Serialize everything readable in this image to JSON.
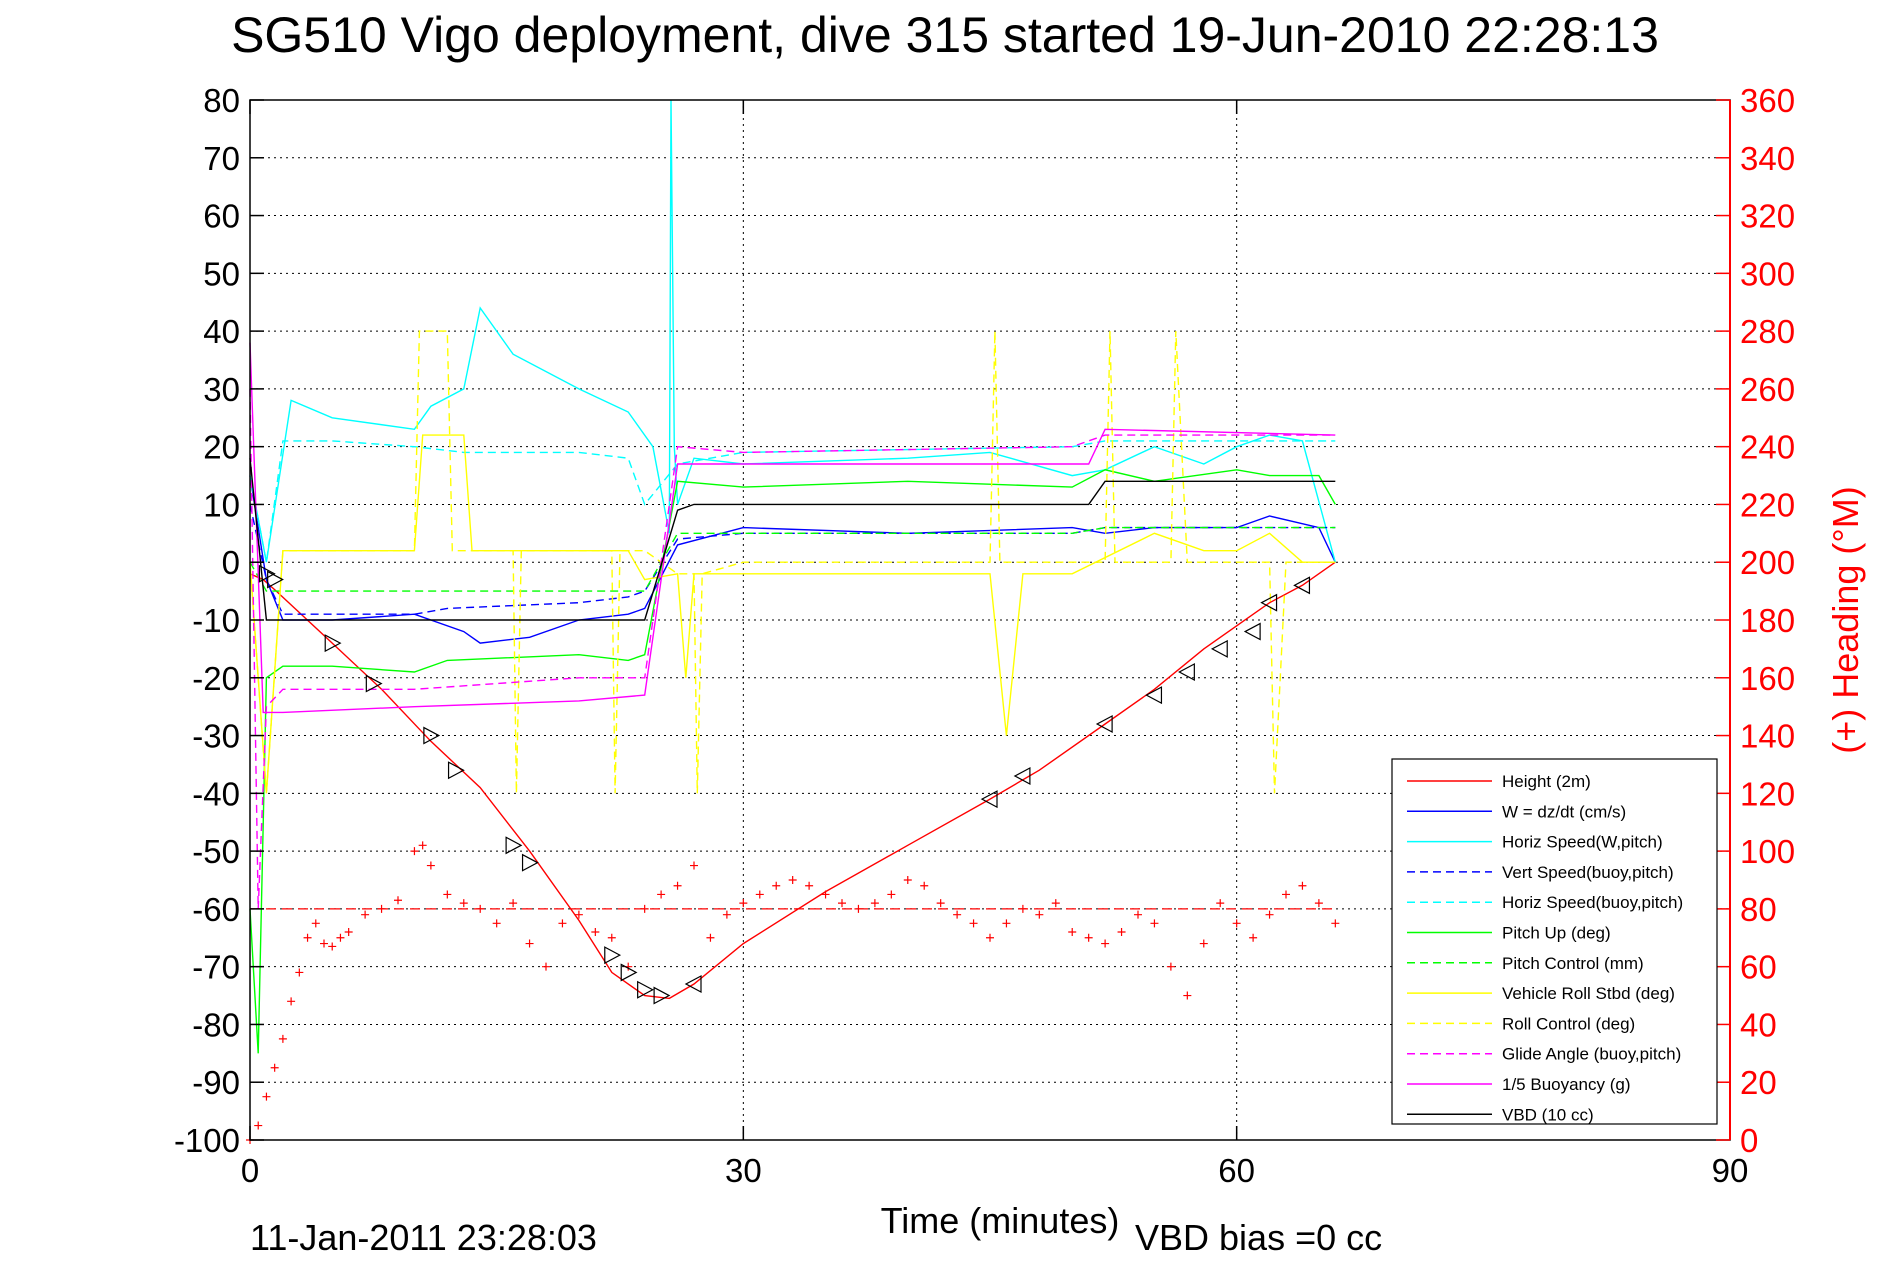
{
  "chart_data": {
    "type": "line",
    "title": "SG510 Vigo deployment, dive 315 started 19-Jun-2010 22:28:13",
    "xlabel": "Time (minutes)",
    "ylabel_right": "(+) Heading (°M)",
    "x_ticks": [
      "0",
      "30",
      "60",
      "90"
    ],
    "xlim": [
      0,
      90
    ],
    "y_ticks": [
      "80",
      "70",
      "60",
      "50",
      "40",
      "30",
      "20",
      "10",
      "0",
      "-10",
      "-20",
      "-30",
      "-40",
      "-50",
      "-60",
      "-70",
      "-80",
      "-90",
      "-100"
    ],
    "ylim": [
      -100,
      80
    ],
    "y2_ticks": [
      "360",
      "340",
      "320",
      "300",
      "280",
      "260",
      "240",
      "220",
      "200",
      "180",
      "160",
      "140",
      "120",
      "100",
      "80",
      "60",
      "40",
      "20",
      "0"
    ],
    "y2lim": [
      0,
      360
    ],
    "grid": true,
    "legend_position": "bottom-right",
    "footer_date": "11-Jan-2011 23:28:03",
    "footer_bias": "VBD bias =0 cc",
    "colors": {
      "height": "#ff0000",
      "w": "#0000ff",
      "horiz_speed": "#00ffff",
      "pitch": "#00ff00",
      "roll": "#ffff00",
      "glide": "#ff00ff",
      "vbd": "#000000",
      "heading": "#ff0000"
    },
    "series": [
      {
        "name": "Height (2m)",
        "color": "#ff0000",
        "style": "solid",
        "x": [
          0,
          0.8,
          1.6,
          5,
          8,
          11,
          14,
          17,
          20,
          22,
          24,
          25.5,
          27,
          30,
          35,
          40,
          45,
          48,
          52,
          55,
          58,
          62,
          64,
          66
        ],
        "y": [
          -2,
          -3,
          -5,
          -14,
          -22,
          -31,
          -39,
          -50,
          -62,
          -71,
          -75,
          -75.5,
          -73,
          -66,
          -57,
          -49,
          -41,
          -36,
          -28,
          -22,
          -15,
          -7,
          -4,
          0
        ]
      },
      {
        "name": "W = dz/dt (cm/s)",
        "color": "#0000ff",
        "style": "solid",
        "x": [
          0,
          1,
          2,
          5,
          10,
          13,
          14,
          17,
          20,
          23,
          24,
          26,
          30,
          40,
          50,
          52,
          55,
          60,
          62,
          65,
          66
        ],
        "y": [
          15,
          -3,
          -10,
          -10,
          -9,
          -12,
          -14,
          -13,
          -10,
          -9,
          -8,
          3,
          6,
          5,
          6,
          5,
          6,
          6,
          8,
          6,
          0
        ]
      },
      {
        "name": "Horiz Speed(W,pitch)",
        "color": "#00ffff",
        "style": "solid",
        "x": [
          0,
          1,
          2.5,
          5,
          10,
          11,
          13,
          14,
          16,
          20,
          23,
          24.5,
          25.5,
          25.6,
          25.8,
          26,
          27,
          30,
          40,
          45,
          50,
          52,
          55,
          58,
          60,
          62,
          64,
          66
        ],
        "y": [
          15,
          0,
          28,
          25,
          23,
          27,
          30,
          44,
          36,
          30,
          26,
          20,
          5,
          80,
          20,
          10,
          18,
          17,
          18,
          19,
          15,
          16,
          20,
          17,
          20,
          22,
          21,
          0
        ]
      },
      {
        "name": "Vert Speed(buoy,pitch)",
        "color": "#0000ff",
        "style": "dashed",
        "x": [
          0,
          1,
          2,
          10,
          12,
          20,
          23,
          24,
          26,
          30,
          50,
          52,
          66
        ],
        "y": [
          10,
          -3,
          -9,
          -9,
          -8,
          -7,
          -6,
          -5,
          4,
          5,
          5,
          6,
          6
        ]
      },
      {
        "name": "Horiz Speed(buoy,pitch)",
        "color": "#00ffff",
        "style": "dashed",
        "x": [
          0,
          1,
          2,
          5,
          10,
          13,
          20,
          23,
          24,
          26,
          30,
          50,
          52,
          66
        ],
        "y": [
          15,
          0,
          21,
          21,
          20,
          19,
          19,
          18,
          10,
          17,
          19,
          20,
          21,
          21
        ]
      },
      {
        "name": "Pitch Up (deg)",
        "color": "#00ff00",
        "style": "solid",
        "x": [
          0,
          0.5,
          1,
          2,
          5,
          10,
          12,
          20,
          23,
          24,
          26,
          30,
          40,
          50,
          52,
          55,
          60,
          62,
          65,
          66
        ],
        "y": [
          -60,
          -85,
          -20,
          -18,
          -18,
          -19,
          -17,
          -16,
          -17,
          -16,
          14,
          13,
          14,
          13,
          16,
          14,
          16,
          15,
          15,
          10
        ]
      },
      {
        "name": "Pitch Control (mm)",
        "color": "#00ff00",
        "style": "dashed",
        "x": [
          0,
          1,
          2,
          20,
          24,
          26,
          50,
          52,
          66
        ],
        "y": [
          0,
          -5,
          -5,
          -5,
          -5,
          5,
          5,
          6,
          6
        ]
      },
      {
        "name": "Vehicle Roll Stbd (deg)",
        "color": "#ffff00",
        "style": "solid",
        "x": [
          0,
          1,
          2,
          10,
          10.5,
          11,
          13,
          13.5,
          14,
          20,
          23,
          24,
          26,
          26.5,
          27,
          30,
          45,
          46,
          47,
          50,
          55,
          58,
          60,
          62,
          64,
          66
        ],
        "y": [
          0,
          -40,
          2,
          2,
          22,
          22,
          22,
          2,
          2,
          2,
          2,
          -3,
          -2,
          -20,
          -2,
          -2,
          -2,
          -30,
          -2,
          -2,
          5,
          2,
          2,
          5,
          0,
          0
        ]
      },
      {
        "name": "Roll Control (deg)",
        "color": "#ffff00",
        "style": "dashed",
        "x": [
          0,
          1,
          2,
          10,
          10.3,
          12,
          12.3,
          16,
          16.2,
          16.5,
          20,
          22,
          22.2,
          22.5,
          24,
          26,
          27,
          27.2,
          27.5,
          30,
          45,
          45.3,
          45.6,
          52,
          52.3,
          52.6,
          56,
          56.3,
          57,
          60,
          62,
          62.3,
          63,
          64,
          66
        ],
        "y": [
          0,
          -40,
          2,
          2,
          40,
          40,
          2,
          2,
          -40,
          2,
          2,
          2,
          -40,
          2,
          2,
          -2,
          -2,
          -40,
          -2,
          0,
          0,
          40,
          0,
          0,
          40,
          0,
          0,
          40,
          0,
          0,
          0,
          -40,
          0,
          0,
          0
        ]
      },
      {
        "name": "Glide Angle (buoy,pitch)",
        "color": "#ff00ff",
        "style": "dashed",
        "x": [
          0,
          0.5,
          1,
          2,
          5,
          10,
          20,
          24,
          26,
          30,
          50,
          52,
          66
        ],
        "y": [
          30,
          -60,
          -25,
          -22,
          -22,
          -22,
          -20,
          -20,
          20,
          19,
          20,
          22,
          22
        ]
      },
      {
        "name": "1/5 Buoyancy (g)",
        "color": "#ff00ff",
        "style": "solid",
        "x": [
          0,
          0.8,
          2,
          10,
          20,
          24,
          26,
          50,
          51,
          52,
          66
        ],
        "y": [
          38,
          -26,
          -26,
          -25,
          -24,
          -23,
          17,
          17,
          17,
          23,
          22
        ]
      },
      {
        "name": "VBD (10 cc)",
        "color": "#000000",
        "style": "solid",
        "x": [
          0,
          1,
          2,
          24,
          26,
          27,
          51,
          52,
          66
        ],
        "y": [
          18,
          -10,
          -10,
          -10,
          9,
          10,
          10,
          14,
          14
        ]
      }
    ],
    "heading_markers": {
      "name": "Heading (+)",
      "color": "#ff0000",
      "mean": 80,
      "x": [
        0,
        0.5,
        1,
        1.5,
        2,
        2.5,
        3,
        3.5,
        4,
        4.5,
        5,
        5.5,
        6,
        7,
        8,
        9,
        10,
        10.5,
        11,
        12,
        13,
        14,
        15,
        16,
        17,
        18,
        19,
        20,
        21,
        22,
        23,
        24,
        25,
        26,
        27,
        28,
        29,
        30,
        31,
        32,
        33,
        34,
        35,
        36,
        37,
        38,
        39,
        40,
        41,
        42,
        43,
        44,
        45,
        46,
        47,
        48,
        49,
        50,
        51,
        52,
        53,
        54,
        55,
        56,
        57,
        58,
        59,
        60,
        61,
        62,
        63,
        64,
        65,
        66
      ],
      "y": [
        0,
        5,
        15,
        25,
        35,
        48,
        58,
        70,
        75,
        68,
        67,
        70,
        72,
        78,
        80,
        83,
        100,
        102,
        95,
        85,
        82,
        80,
        75,
        82,
        68,
        60,
        75,
        78,
        72,
        70,
        60,
        80,
        85,
        88,
        95,
        70,
        78,
        82,
        85,
        88,
        90,
        88,
        85,
        82,
        80,
        82,
        85,
        90,
        88,
        82,
        78,
        75,
        70,
        75,
        80,
        78,
        82,
        72,
        70,
        68,
        72,
        78,
        75,
        60,
        50,
        68,
        82,
        75,
        70,
        78,
        85,
        88,
        82,
        75
      ]
    },
    "depth_markers": {
      "x": [
        1,
        1.5,
        5,
        7.5,
        11,
        12.5,
        16,
        17,
        22,
        23,
        24,
        25,
        27,
        45,
        47,
        52,
        55,
        57,
        59,
        61,
        62,
        64
      ],
      "y": [
        -2,
        -3,
        -14,
        -21,
        -30,
        -36,
        -49,
        -52,
        -68,
        -71,
        -74,
        -75,
        -73,
        -41,
        -37,
        -28,
        -23,
        -19,
        -15,
        -12,
        -7,
        -4
      ]
    }
  }
}
